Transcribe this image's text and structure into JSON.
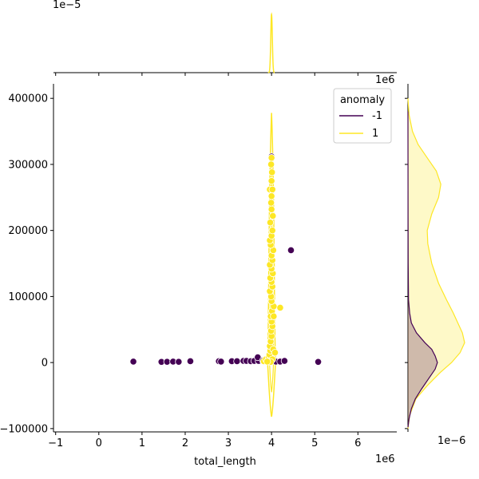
{
  "chart_data": {
    "type": "scatter",
    "title": "",
    "xlabel": "total_length",
    "ylabel": "",
    "x_scale_label": "1e6",
    "y_scale_label": "",
    "xlim": [
      -1.05,
      6.9
    ],
    "ylim": [
      -105000,
      422000
    ],
    "x_ticks": [
      -1,
      0,
      1,
      2,
      3,
      4,
      5,
      6
    ],
    "y_ticks": [
      -100000,
      0,
      100000,
      200000,
      300000,
      400000
    ],
    "grid": false,
    "legend": {
      "title": "anomaly",
      "placement": "top-right",
      "entries": [
        {
          "label": "-1",
          "color": "#440154"
        },
        {
          "label": "1",
          "color": "#fde725"
        }
      ]
    },
    "series": [
      {
        "name": "-1",
        "color": "#440154",
        "points": [
          [
            0.8,
            1500
          ],
          [
            1.45,
            1000
          ],
          [
            1.58,
            1200
          ],
          [
            1.72,
            1500
          ],
          [
            1.85,
            1200
          ],
          [
            2.12,
            2000
          ],
          [
            2.78,
            2000
          ],
          [
            2.83,
            1500
          ],
          [
            3.08,
            2000
          ],
          [
            3.2,
            2000
          ],
          [
            3.35,
            2500
          ],
          [
            3.42,
            2500
          ],
          [
            3.52,
            2000
          ],
          [
            3.6,
            2500
          ],
          [
            3.7,
            2500
          ],
          [
            3.68,
            8000
          ],
          [
            3.8,
            3000
          ],
          [
            3.9,
            2000
          ],
          [
            4.0,
            312000
          ],
          [
            4.1,
            1500
          ],
          [
            4.2,
            1500
          ],
          [
            4.3,
            2500
          ],
          [
            4.45,
            170000
          ],
          [
            5.08,
            1000
          ]
        ]
      },
      {
        "name": "1",
        "color": "#fde725",
        "points": [
          [
            3.82,
            2000
          ],
          [
            3.87,
            5000
          ],
          [
            3.93,
            8000
          ],
          [
            3.95,
            12000
          ],
          [
            3.97,
            18000
          ],
          [
            3.96,
            25000
          ],
          [
            3.98,
            32000
          ],
          [
            4.0,
            40000
          ],
          [
            3.99,
            48000
          ],
          [
            4.02,
            55000
          ],
          [
            4.0,
            62000
          ],
          [
            3.98,
            70000
          ],
          [
            4.01,
            78000
          ],
          [
            4.05,
            85000
          ],
          [
            4.0,
            93000
          ],
          [
            3.99,
            100000
          ],
          [
            3.96,
            108000
          ],
          [
            4.02,
            115000
          ],
          [
            4.0,
            122000
          ],
          [
            3.97,
            128000
          ],
          [
            4.03,
            135000
          ],
          [
            4.0,
            142000
          ],
          [
            3.96,
            148000
          ],
          [
            4.02,
            155000
          ],
          [
            4.0,
            162000
          ],
          [
            4.04,
            170000
          ],
          [
            3.98,
            178000
          ],
          [
            3.96,
            185000
          ],
          [
            4.0,
            192000
          ],
          [
            4.02,
            200000
          ],
          [
            3.97,
            212000
          ],
          [
            4.03,
            222000
          ],
          [
            4.0,
            232000
          ],
          [
            3.99,
            242000
          ],
          [
            4.0,
            252000
          ],
          [
            3.96,
            262000
          ],
          [
            4.02,
            262000
          ],
          [
            4.0,
            275000
          ],
          [
            4.01,
            288000
          ],
          [
            3.99,
            300000
          ],
          [
            4.0,
            310000
          ],
          [
            4.2,
            83000
          ],
          [
            4.04,
            20000
          ],
          [
            4.08,
            15000
          ],
          [
            4.02,
            5000
          ],
          [
            3.98,
            1000
          ],
          [
            3.9,
            1500
          ],
          [
            4.05,
            70000
          ]
        ]
      }
    ],
    "top_marginal": {
      "scale_label": "1e−5",
      "series": [
        {
          "name": "1",
          "color": "#fde725",
          "peak_x": 4.0,
          "width": 0.018
        }
      ]
    },
    "right_marginal": {
      "scale_label": "1e−6",
      "series": [
        {
          "name": "-1",
          "color": "#440154",
          "density_points": [
            [
              -98000,
              0.0
            ],
            [
              -85000,
              0.02
            ],
            [
              -70000,
              0.06
            ],
            [
              -55000,
              0.13
            ],
            [
              -40000,
              0.24
            ],
            [
              -25000,
              0.36
            ],
            [
              -10000,
              0.48
            ],
            [
              0,
              0.52
            ],
            [
              10000,
              0.48
            ],
            [
              20000,
              0.42
            ],
            [
              30000,
              0.3
            ],
            [
              45000,
              0.15
            ],
            [
              60000,
              0.06
            ],
            [
              75000,
              0.03
            ],
            [
              95000,
              0.01
            ],
            [
              150000,
              0.004
            ],
            [
              220000,
              0.002
            ],
            [
              300000,
              0.001
            ],
            [
              380000,
              0.0
            ]
          ]
        },
        {
          "name": "1",
          "color": "#fde725",
          "density_points": [
            [
              -100000,
              0.0
            ],
            [
              -80000,
              0.03
            ],
            [
              -55000,
              0.14
            ],
            [
              -35000,
              0.34
            ],
            [
              -15000,
              0.57
            ],
            [
              0,
              0.77
            ],
            [
              15000,
              0.92
            ],
            [
              30000,
              1.0
            ],
            [
              45000,
              0.96
            ],
            [
              60000,
              0.88
            ],
            [
              75000,
              0.8
            ],
            [
              95000,
              0.68
            ],
            [
              120000,
              0.54
            ],
            [
              150000,
              0.42
            ],
            [
              180000,
              0.35
            ],
            [
              200000,
              0.34
            ],
            [
              225000,
              0.42
            ],
            [
              250000,
              0.54
            ],
            [
              270000,
              0.58
            ],
            [
              290000,
              0.5
            ],
            [
              310000,
              0.34
            ],
            [
              330000,
              0.18
            ],
            [
              350000,
              0.08
            ],
            [
              375000,
              0.02
            ],
            [
              400000,
              0.0
            ]
          ]
        }
      ]
    }
  }
}
